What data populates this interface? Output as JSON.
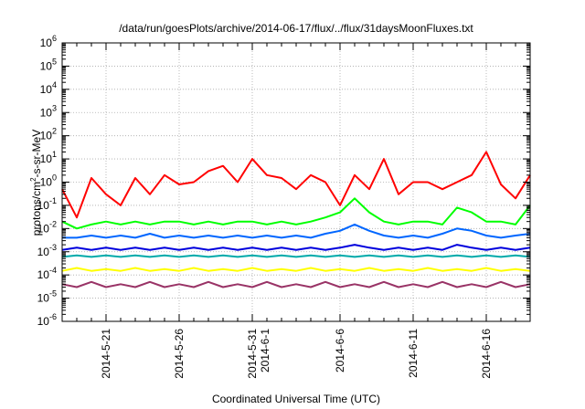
{
  "chart_data": {
    "type": "line",
    "title": "/data/run/goesPlots/archive/2014-06-17/flux/../flux/31daysMoonFluxes.txt",
    "xlabel": "Coordinated Universal Time (UTC)",
    "ylabel": "protons/cm²-s-sr-MeV",
    "ylabel_parts": {
      "pre": "protons/cm",
      "sup": "2",
      "post": "-s-sr-MeV"
    },
    "yscale": "log",
    "ylim": [
      1e-06,
      1000000.0
    ],
    "xlim": [
      "2014-05-18",
      "2014-06-19"
    ],
    "grid": true,
    "y_ticks": [
      {
        "value": 1e-06,
        "base": "10",
        "exp": "-6"
      },
      {
        "value": 1e-05,
        "base": "10",
        "exp": "-5"
      },
      {
        "value": 0.0001,
        "base": "10",
        "exp": "-4"
      },
      {
        "value": 0.001,
        "base": "10",
        "exp": "-3"
      },
      {
        "value": 0.01,
        "base": "10",
        "exp": "-2"
      },
      {
        "value": 0.1,
        "base": "10",
        "exp": "-1"
      },
      {
        "value": 1.0,
        "base": "10",
        "exp": "0"
      },
      {
        "value": 10.0,
        "base": "10",
        "exp": "1"
      },
      {
        "value": 100.0,
        "base": "10",
        "exp": "2"
      },
      {
        "value": 1000.0,
        "base": "10",
        "exp": "3"
      },
      {
        "value": 10000.0,
        "base": "10",
        "exp": "4"
      },
      {
        "value": 100000.0,
        "base": "10",
        "exp": "5"
      },
      {
        "value": 1000000.0,
        "base": "10",
        "exp": "6"
      }
    ],
    "x_ticks": [
      {
        "date": "2014-05-21",
        "label": [
          "2014-5-21"
        ]
      },
      {
        "date": "2014-05-26",
        "label": [
          "2014-5-26"
        ]
      },
      {
        "date": "2014-05-31",
        "label": [
          "2014-5-31",
          "2014-6-1"
        ]
      },
      {
        "date": "2014-06-06",
        "label": [
          "2014-6-6"
        ]
      },
      {
        "date": "2014-06-11",
        "label": [
          "2014-6-11"
        ]
      },
      {
        "date": "2014-06-16",
        "label": [
          "2014-6-16"
        ]
      }
    ],
    "series": [
      {
        "color": "#ff0000",
        "x": [
          "2014-05-18",
          "2014-05-19",
          "2014-05-20",
          "2014-05-21",
          "2014-05-22",
          "2014-05-23",
          "2014-05-24",
          "2014-05-25",
          "2014-05-26",
          "2014-05-27",
          "2014-05-28",
          "2014-05-29",
          "2014-05-30",
          "2014-05-31",
          "2014-06-01",
          "2014-06-02",
          "2014-06-03",
          "2014-06-04",
          "2014-06-05",
          "2014-06-06",
          "2014-06-07",
          "2014-06-08",
          "2014-06-09",
          "2014-06-10",
          "2014-06-11",
          "2014-06-12",
          "2014-06-13",
          "2014-06-14",
          "2014-06-15",
          "2014-06-16",
          "2014-06-17",
          "2014-06-18",
          "2014-06-19"
        ],
        "y": [
          0.5,
          0.03,
          1.5,
          0.3,
          0.1,
          1.5,
          0.3,
          2,
          0.8,
          1,
          3,
          5,
          1,
          10,
          2,
          1.5,
          0.5,
          2,
          1,
          0.1,
          2,
          0.5,
          10,
          0.3,
          1,
          1,
          0.5,
          1,
          2,
          20,
          0.8,
          0.2,
          2
        ]
      },
      {
        "color": "#00ff00",
        "x": [
          "2014-05-18",
          "2014-05-19",
          "2014-05-20",
          "2014-05-21",
          "2014-05-22",
          "2014-05-23",
          "2014-05-24",
          "2014-05-25",
          "2014-05-26",
          "2014-05-27",
          "2014-05-28",
          "2014-05-29",
          "2014-05-30",
          "2014-05-31",
          "2014-06-01",
          "2014-06-02",
          "2014-06-03",
          "2014-06-04",
          "2014-06-05",
          "2014-06-06",
          "2014-06-07",
          "2014-06-08",
          "2014-06-09",
          "2014-06-10",
          "2014-06-11",
          "2014-06-12",
          "2014-06-13",
          "2014-06-14",
          "2014-06-15",
          "2014-06-16",
          "2014-06-17",
          "2014-06-18",
          "2014-06-19"
        ],
        "y": [
          0.02,
          0.01,
          0.015,
          0.02,
          0.015,
          0.02,
          0.015,
          0.02,
          0.02,
          0.015,
          0.02,
          0.015,
          0.02,
          0.02,
          0.015,
          0.02,
          0.015,
          0.02,
          0.03,
          0.05,
          0.2,
          0.05,
          0.02,
          0.015,
          0.02,
          0.02,
          0.015,
          0.08,
          0.05,
          0.02,
          0.02,
          0.015,
          0.1
        ]
      },
      {
        "color": "#0066ff",
        "x": [
          "2014-05-18",
          "2014-05-19",
          "2014-05-20",
          "2014-05-21",
          "2014-05-22",
          "2014-05-23",
          "2014-05-24",
          "2014-05-25",
          "2014-05-26",
          "2014-05-27",
          "2014-05-28",
          "2014-05-29",
          "2014-05-30",
          "2014-05-31",
          "2014-06-01",
          "2014-06-02",
          "2014-06-03",
          "2014-06-04",
          "2014-06-05",
          "2014-06-06",
          "2014-06-07",
          "2014-06-08",
          "2014-06-09",
          "2014-06-10",
          "2014-06-11",
          "2014-06-12",
          "2014-06-13",
          "2014-06-14",
          "2014-06-15",
          "2014-06-16",
          "2014-06-17",
          "2014-06-18",
          "2014-06-19"
        ],
        "y": [
          0.004,
          0.004,
          0.005,
          0.004,
          0.005,
          0.004,
          0.006,
          0.004,
          0.005,
          0.004,
          0.005,
          0.004,
          0.005,
          0.004,
          0.005,
          0.004,
          0.005,
          0.004,
          0.006,
          0.008,
          0.015,
          0.008,
          0.005,
          0.004,
          0.005,
          0.004,
          0.006,
          0.01,
          0.008,
          0.005,
          0.004,
          0.005,
          0.006
        ]
      },
      {
        "color": "#0000dd",
        "x": [
          "2014-05-18",
          "2014-05-19",
          "2014-05-20",
          "2014-05-21",
          "2014-05-22",
          "2014-05-23",
          "2014-05-24",
          "2014-05-25",
          "2014-05-26",
          "2014-05-27",
          "2014-05-28",
          "2014-05-29",
          "2014-05-30",
          "2014-05-31",
          "2014-06-01",
          "2014-06-02",
          "2014-06-03",
          "2014-06-04",
          "2014-06-05",
          "2014-06-06",
          "2014-06-07",
          "2014-06-08",
          "2014-06-09",
          "2014-06-10",
          "2014-06-11",
          "2014-06-12",
          "2014-06-13",
          "2014-06-14",
          "2014-06-15",
          "2014-06-16",
          "2014-06-17",
          "2014-06-18",
          "2014-06-19"
        ],
        "y": [
          0.0012,
          0.0015,
          0.0012,
          0.0015,
          0.0012,
          0.0015,
          0.0012,
          0.0015,
          0.0012,
          0.0015,
          0.0012,
          0.0015,
          0.0012,
          0.0015,
          0.0012,
          0.0015,
          0.0012,
          0.0015,
          0.0012,
          0.0015,
          0.002,
          0.0015,
          0.0012,
          0.0015,
          0.0012,
          0.0015,
          0.0012,
          0.002,
          0.0015,
          0.0012,
          0.0015,
          0.0012,
          0.0015
        ]
      },
      {
        "color": "#00aaaa",
        "x": [
          "2014-05-18",
          "2014-05-19",
          "2014-05-20",
          "2014-05-21",
          "2014-05-22",
          "2014-05-23",
          "2014-05-24",
          "2014-05-25",
          "2014-05-26",
          "2014-05-27",
          "2014-05-28",
          "2014-05-29",
          "2014-05-30",
          "2014-05-31",
          "2014-06-01",
          "2014-06-02",
          "2014-06-03",
          "2014-06-04",
          "2014-06-05",
          "2014-06-06",
          "2014-06-07",
          "2014-06-08",
          "2014-06-09",
          "2014-06-10",
          "2014-06-11",
          "2014-06-12",
          "2014-06-13",
          "2014-06-14",
          "2014-06-15",
          "2014-06-16",
          "2014-06-17",
          "2014-06-18",
          "2014-06-19"
        ],
        "y": [
          0.0006,
          0.0007,
          0.0006,
          0.0007,
          0.0006,
          0.0007,
          0.0006,
          0.0007,
          0.0006,
          0.0007,
          0.0006,
          0.0007,
          0.0006,
          0.0007,
          0.0006,
          0.0007,
          0.0006,
          0.0007,
          0.0006,
          0.0007,
          0.0006,
          0.0007,
          0.0006,
          0.0007,
          0.0006,
          0.0007,
          0.0006,
          0.0007,
          0.0006,
          0.0007,
          0.0006,
          0.0007,
          0.0006
        ]
      },
      {
        "color": "#ffff00",
        "x": [
          "2014-05-18",
          "2014-05-19",
          "2014-05-20",
          "2014-05-21",
          "2014-05-22",
          "2014-05-23",
          "2014-05-24",
          "2014-05-25",
          "2014-05-26",
          "2014-05-27",
          "2014-05-28",
          "2014-05-29",
          "2014-05-30",
          "2014-05-31",
          "2014-06-01",
          "2014-06-02",
          "2014-06-03",
          "2014-06-04",
          "2014-06-05",
          "2014-06-06",
          "2014-06-07",
          "2014-06-08",
          "2014-06-09",
          "2014-06-10",
          "2014-06-11",
          "2014-06-12",
          "2014-06-13",
          "2014-06-14",
          "2014-06-15",
          "2014-06-16",
          "2014-06-17",
          "2014-06-18",
          "2014-06-19"
        ],
        "y": [
          0.00015,
          0.0002,
          0.00015,
          0.00018,
          0.00015,
          0.0002,
          0.00015,
          0.00018,
          0.00015,
          0.0002,
          0.00015,
          0.00018,
          0.00015,
          0.0002,
          0.00015,
          0.00018,
          0.00015,
          0.0002,
          0.00015,
          0.00018,
          0.00015,
          0.0002,
          0.00015,
          0.00018,
          0.00015,
          0.0002,
          0.00015,
          0.00018,
          0.00015,
          0.0002,
          0.00015,
          0.00018,
          0.00015
        ]
      },
      {
        "color": "#993366",
        "x": [
          "2014-05-18",
          "2014-05-19",
          "2014-05-20",
          "2014-05-21",
          "2014-05-22",
          "2014-05-23",
          "2014-05-24",
          "2014-05-25",
          "2014-05-26",
          "2014-05-27",
          "2014-05-28",
          "2014-05-29",
          "2014-05-30",
          "2014-05-31",
          "2014-06-01",
          "2014-06-02",
          "2014-06-03",
          "2014-06-04",
          "2014-06-05",
          "2014-06-06",
          "2014-06-07",
          "2014-06-08",
          "2014-06-09",
          "2014-06-10",
          "2014-06-11",
          "2014-06-12",
          "2014-06-13",
          "2014-06-14",
          "2014-06-15",
          "2014-06-16",
          "2014-06-17",
          "2014-06-18",
          "2014-06-19"
        ],
        "y": [
          4e-05,
          3e-05,
          5e-05,
          3e-05,
          4e-05,
          3e-05,
          5e-05,
          3e-05,
          4e-05,
          3e-05,
          5e-05,
          3e-05,
          4e-05,
          3e-05,
          5e-05,
          3e-05,
          4e-05,
          3e-05,
          5e-05,
          3e-05,
          4e-05,
          3e-05,
          5e-05,
          3e-05,
          4e-05,
          3e-05,
          5e-05,
          3e-05,
          4e-05,
          3e-05,
          5e-05,
          3e-05,
          4e-05
        ]
      }
    ]
  }
}
